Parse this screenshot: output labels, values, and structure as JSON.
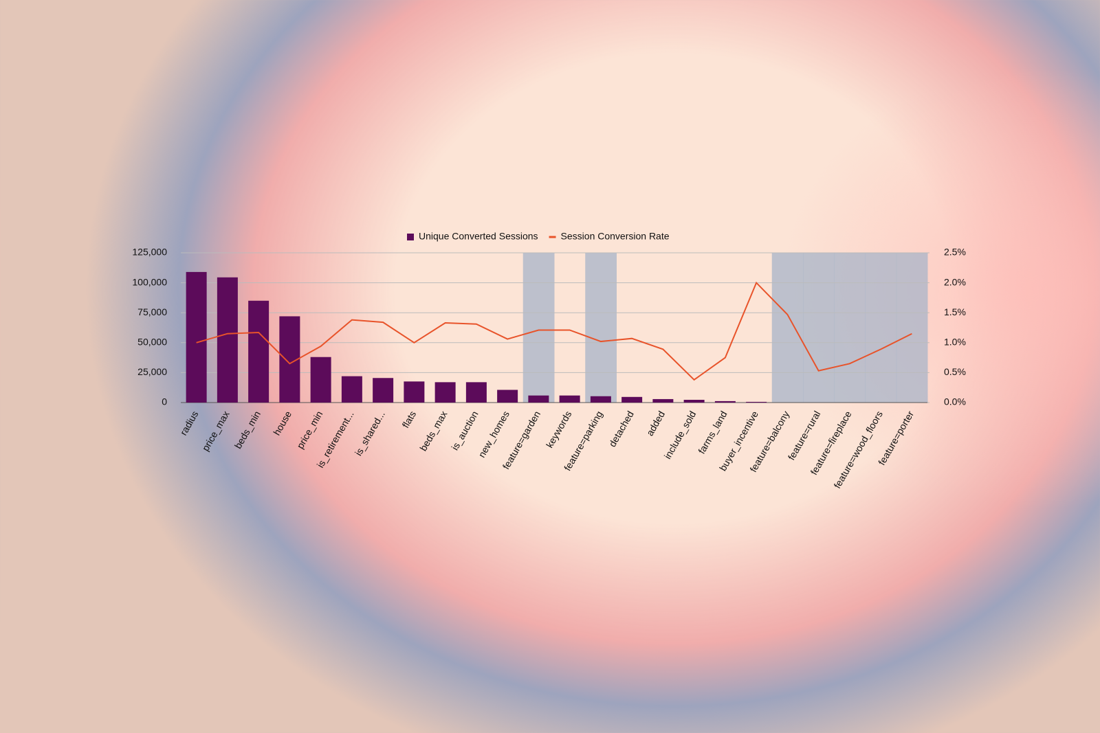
{
  "chart_data": {
    "type": "bar-line",
    "categories": [
      "radius",
      "price_max",
      "beds_min",
      "house",
      "price_min",
      "is_retirement...",
      "is_shared...",
      "flats",
      "beds_max",
      "is_auction",
      "new_homes",
      "feature=garden",
      "keywords",
      "feature=parking",
      "detached",
      "added",
      "include_sold",
      "farms_land",
      "buyer_incentive",
      "feature=balcony",
      "feature=rural",
      "feature=fireplace",
      "feature=wood_floors",
      "feature=porter"
    ],
    "series": [
      {
        "name": "Unique Converted Sessions",
        "type": "bar",
        "color": "#5c0b5a",
        "values": [
          109000,
          104500,
          85000,
          72000,
          38000,
          22000,
          20500,
          17600,
          17000,
          17000,
          10600,
          5900,
          5900,
          5300,
          4700,
          2900,
          2300,
          1200,
          600,
          0,
          0,
          0,
          0,
          0
        ]
      },
      {
        "name": "Session Conversion Rate",
        "type": "line",
        "color": "#e8532a",
        "axis": "y2",
        "values": [
          1.0,
          1.15,
          1.17,
          0.65,
          0.94,
          1.38,
          1.34,
          1.0,
          1.33,
          1.31,
          1.06,
          1.21,
          1.21,
          1.02,
          1.07,
          0.89,
          0.38,
          0.75,
          2.0,
          1.47,
          0.53,
          0.65,
          0.89,
          1.15
        ]
      }
    ],
    "ylim": [
      0,
      125000
    ],
    "yticks": [
      0,
      {
        "value": 25000,
        "label": "25,000"
      },
      {
        "value": 50000,
        "label": "50,000"
      },
      {
        "value": 75000,
        "label": "75,000"
      },
      {
        "value": 100000,
        "label": "100,000"
      },
      {
        "value": 125000,
        "label": "125,000"
      }
    ],
    "y2lim": [
      0,
      2.5
    ],
    "y2ticks": [
      {
        "value": 0,
        "label": "0.0%"
      },
      {
        "value": 0.5,
        "label": "0.5%"
      },
      {
        "value": 1.0,
        "label": "1.0%"
      },
      {
        "value": 1.5,
        "label": "1.5%"
      },
      {
        "value": 2.0,
        "label": "2.0%"
      },
      {
        "value": 2.5,
        "label": "2.5%"
      }
    ],
    "grid": true,
    "legend": "top",
    "highlighted_categories": [
      11,
      13,
      19,
      20,
      21,
      22,
      23
    ],
    "highlight_color": "#a8b4c8"
  }
}
